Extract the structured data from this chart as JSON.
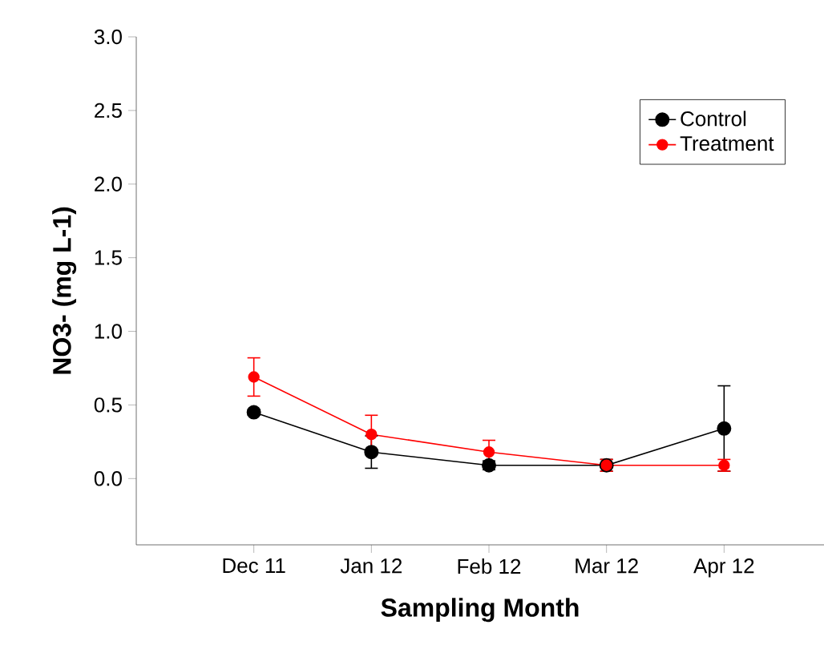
{
  "chart_data": {
    "type": "line",
    "xlabel": "Sampling Month",
    "ylabel": "NO3- (mg L-1)",
    "categories": [
      "Dec 11",
      "Jan 12",
      "Feb 12",
      "Mar 12",
      "Apr 12"
    ],
    "series": [
      {
        "name": "Control",
        "color": "#000000",
        "values": [
          0.45,
          0.18,
          0.09,
          0.09,
          0.34
        ],
        "errors": [
          0.02,
          0.11,
          0.03,
          0.04,
          0.29
        ]
      },
      {
        "name": "Treatment",
        "color": "#ff0000",
        "values": [
          0.69,
          0.3,
          0.18,
          0.09,
          0.09
        ],
        "errors": [
          0.13,
          0.13,
          0.08,
          0.04,
          0.04
        ]
      }
    ],
    "ylim": [
      -0.45,
      3.0
    ],
    "yticks": [
      {
        "value": 0,
        "label": "0.0"
      },
      0.5,
      {
        "value": 1,
        "label": "1.0"
      },
      1.5,
      {
        "value": 2,
        "label": "2.0"
      },
      2.5,
      {
        "value": 3,
        "label": "3.0"
      }
    ],
    "legend": "top right",
    "marker": "circle",
    "line_style": "solid",
    "grid": false
  }
}
